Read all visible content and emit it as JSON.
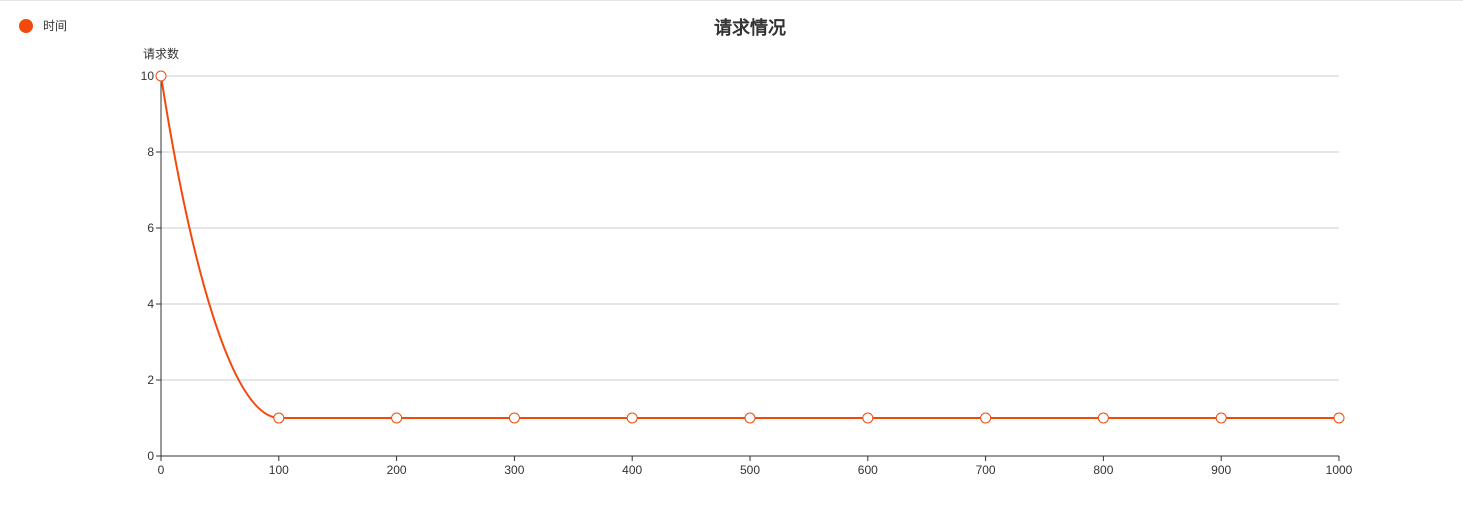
{
  "legend": {
    "items": [
      {
        "label": "时间",
        "color": "#f24a0c"
      }
    ]
  },
  "chart_data": {
    "type": "line",
    "title": "请求情况",
    "xlabel": "",
    "ylabel": "请求数",
    "x": [
      0,
      100,
      200,
      300,
      400,
      500,
      600,
      700,
      800,
      900,
      1000
    ],
    "x_ticks": [
      "0",
      "100",
      "200",
      "300",
      "400",
      "500",
      "600",
      "700",
      "800",
      "900",
      "1000"
    ],
    "y_ticks": [
      "0",
      "2",
      "4",
      "6",
      "8",
      "10"
    ],
    "xlim": [
      0,
      1000
    ],
    "ylim": [
      0,
      10
    ],
    "grid": true,
    "smooth": true,
    "legend_position": "top-left",
    "series": [
      {
        "name": "时间",
        "color": "#f24a0c",
        "values": [
          10,
          1,
          1,
          1,
          1,
          1,
          1,
          1,
          1,
          1,
          1
        ]
      }
    ]
  }
}
